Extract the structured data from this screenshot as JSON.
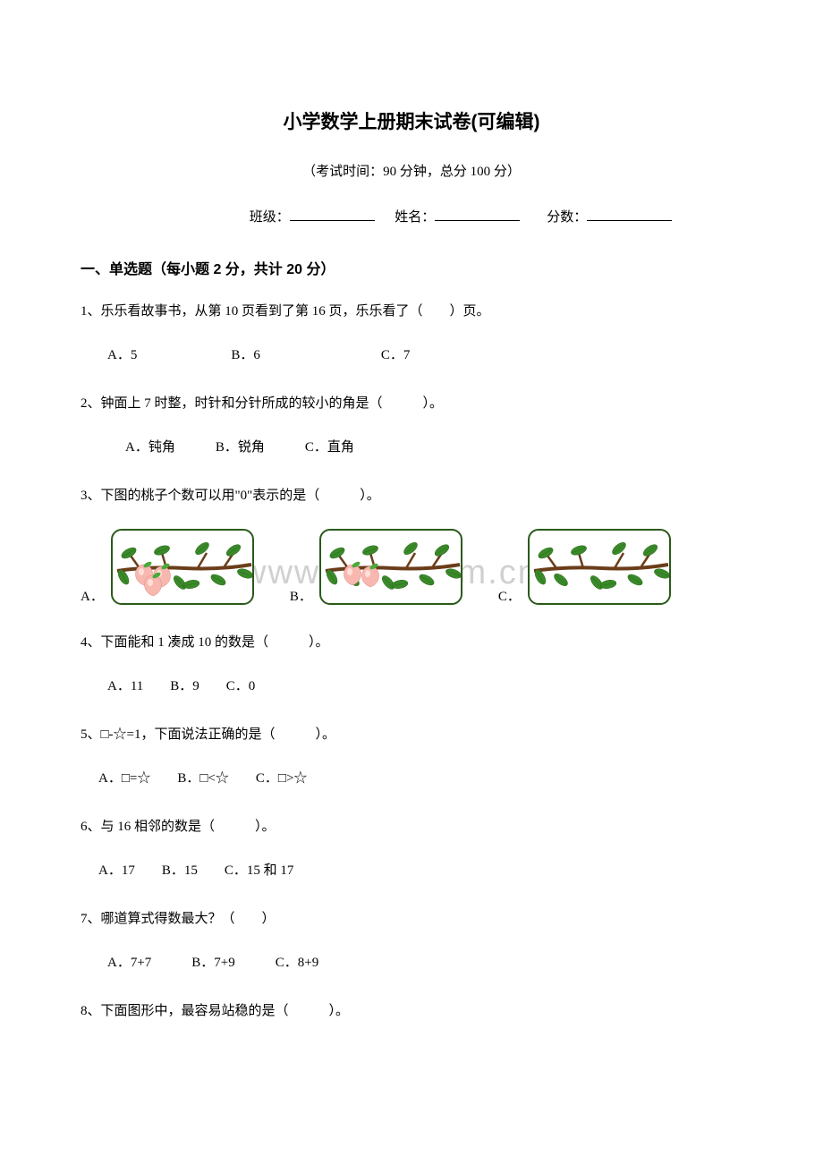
{
  "title": "小学数学上册期末试卷(可编辑)",
  "exam_info": "（考试时间：90 分钟，总分 100 分）",
  "fill_labels": {
    "class": "班级：",
    "name": "姓名：",
    "score": "分数："
  },
  "section1": "一、单选题（每小题 2 分，共计 20 分）",
  "q1": {
    "text": "1、乐乐看故事书，从第 10 页看到了第 16 页，乐乐看了（　　）页。",
    "opts": "A．5　　　　　　　B．6　　　　　　　　　C．7"
  },
  "q2": {
    "text": "2、钟面上 7 时整，时针和分针所成的较小的角是（　　　）。",
    "opts": "A．钝角　　　B．锐角　　　C．直角"
  },
  "q3": {
    "text": "3、下图的桃子个数可以用\"0\"表示的是（　　　）。",
    "a": "A．",
    "b": "B．",
    "c": "C．"
  },
  "q4": {
    "text": "4、下面能和 1 凑成 10 的数是（　　　）。",
    "opts": "A．11　　B．9　　C．0"
  },
  "q5": {
    "text": "5、□-☆=1，下面说法正确的是（　　　）。",
    "opts": "A．□=☆　　B．□<☆　　C．□>☆"
  },
  "q6": {
    "text": "6、与 16 相邻的数是（　　　）。",
    "opts": "A．17　　B．15　　C．15 和 17"
  },
  "q7": {
    "text": "7、哪道算式得数最大？（　　）",
    "opts": "A．7+7　　　B．7+9　　　C．8+9"
  },
  "q8": {
    "text": "8、下面图形中，最容易站稳的是（　　　）。"
  },
  "watermark": "www.zixin.com.cn",
  "peach_counts": {
    "a": 3,
    "b": 2,
    "c": 0
  },
  "colors": {
    "branch": "#6b3d1a",
    "leaf": "#3a8a2a",
    "leaf_dark": "#2a6a1a",
    "peach": "#f8b8b0",
    "peach_hl": "#ffe0d8",
    "peach_leaf": "#4aaa3a",
    "border": "#2a5a1a"
  }
}
